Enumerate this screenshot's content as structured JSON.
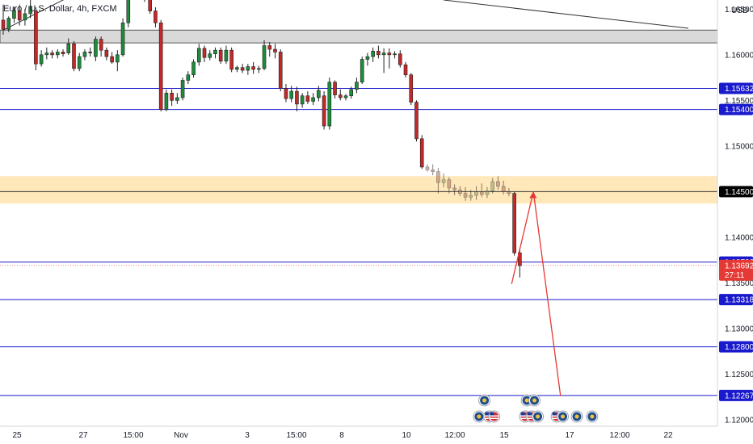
{
  "header": {
    "title": "Euro / U.S. Dollar, 4h, FXCM"
  },
  "colors": {
    "up": "#1e8c3c",
    "down": "#c62828",
    "level": "#1a1acd",
    "zone": "#ffcc66",
    "grey_zone": "#cfcfcf",
    "current": "#e53935",
    "trendline": "#333333",
    "arrow": "#e53935"
  },
  "chart_data": {
    "type": "candlestick",
    "title": "Euro / U.S. Dollar, 4h, FXCM",
    "currency": "USD",
    "ylim": [
      1.1193,
      1.166
    ],
    "y_ticks": [
      "1.16500",
      "1.16000",
      "1.15500",
      "1.15000",
      "1.14500",
      "1.14000",
      "1.13500",
      "1.13000",
      "1.12500",
      "1.12000"
    ],
    "x_ticks": [
      "25",
      "27",
      "15:00",
      "Nov",
      "3",
      "15:00",
      "8",
      "10",
      "12:00",
      "15",
      "17",
      "12:00",
      "22"
    ],
    "price_tags": [
      {
        "label": "1.15632",
        "value": 1.15632,
        "kind": "level"
      },
      {
        "label": "1.15400",
        "value": 1.154,
        "kind": "level"
      },
      {
        "label": "1.14500",
        "value": 1.145,
        "kind": "zone"
      },
      {
        "label": "1.13729",
        "value": 1.13729,
        "kind": "level"
      },
      {
        "label": "1.13692",
        "value": 1.13692,
        "kind": "current",
        "countdown": "27:11"
      },
      {
        "label": "1.13318",
        "value": 1.13318,
        "kind": "level"
      },
      {
        "label": "1.12800",
        "value": 1.128,
        "kind": "level"
      },
      {
        "label": "1.12267",
        "value": 1.12267,
        "kind": "level"
      }
    ],
    "horizontal_levels": [
      1.15632,
      1.154,
      1.13729,
      1.13318,
      1.128,
      1.12267
    ],
    "zones": [
      {
        "low": 1.1613,
        "high": 1.1627,
        "color": "grey"
      },
      {
        "low": 1.1437,
        "high": 1.1467,
        "color": "orange",
        "mid": 1.145
      }
    ],
    "trendlines": [
      {
        "from": [
          0,
          1.1627
        ],
        "to": [
          16,
          1.1675
        ]
      },
      {
        "from": [
          81,
          1.166
        ],
        "to": [
          126,
          1.1629
        ]
      }
    ],
    "projection": [
      [
        93.5,
        1.1349
      ],
      [
        97.5,
        1.145
      ],
      [
        102.5,
        1.1226
      ]
    ],
    "candles": [
      [
        1.1638,
        1.1655,
        1.1622,
        1.1628
      ],
      [
        1.1628,
        1.1642,
        1.1625,
        1.164
      ],
      [
        1.164,
        1.1652,
        1.1635,
        1.1648
      ],
      [
        1.1648,
        1.1655,
        1.1632,
        1.1638
      ],
      [
        1.1638,
        1.165,
        1.1632,
        1.1645
      ],
      [
        1.1645,
        1.166,
        1.164,
        1.1653
      ],
      [
        1.1648,
        1.1652,
        1.1583,
        1.159
      ],
      [
        1.159,
        1.1605,
        1.1587,
        1.16
      ],
      [
        1.16,
        1.1608,
        1.1595,
        1.1602
      ],
      [
        1.1602,
        1.1605,
        1.1596,
        1.16
      ],
      [
        1.16,
        1.1606,
        1.1596,
        1.1603
      ],
      [
        1.1603,
        1.1606,
        1.1598,
        1.1601
      ],
      [
        1.1602,
        1.1618,
        1.16,
        1.1612
      ],
      [
        1.1612,
        1.1615,
        1.1582,
        1.1585
      ],
      [
        1.1585,
        1.1602,
        1.1582,
        1.1598
      ],
      [
        1.1598,
        1.1606,
        1.1594,
        1.1603
      ],
      [
        1.1603,
        1.1608,
        1.1598,
        1.1602
      ],
      [
        1.1598,
        1.162,
        1.1593,
        1.1617
      ],
      [
        1.1617,
        1.162,
        1.1598,
        1.1605
      ],
      [
        1.1605,
        1.1608,
        1.1594,
        1.1598
      ],
      [
        1.1598,
        1.1603,
        1.159,
        1.1592
      ],
      [
        1.1592,
        1.1605,
        1.1582,
        1.16
      ],
      [
        1.16,
        1.164,
        1.1598,
        1.1635
      ],
      [
        1.1635,
        1.1672,
        1.163,
        1.1668
      ],
      [
        1.1668,
        1.1676,
        1.1662,
        1.167
      ],
      [
        1.167,
        1.1675,
        1.1665,
        1.1672
      ],
      [
        1.1672,
        1.1675,
        1.1658,
        1.1662
      ],
      [
        1.1662,
        1.1668,
        1.1645,
        1.1648
      ],
      [
        1.1648,
        1.1652,
        1.163,
        1.1635
      ],
      [
        1.1635,
        1.1638,
        1.1538,
        1.154
      ],
      [
        1.154,
        1.1562,
        1.1538,
        1.1558
      ],
      [
        1.1558,
        1.1562,
        1.1544,
        1.155
      ],
      [
        1.155,
        1.1558,
        1.1546,
        1.1553
      ],
      [
        1.1553,
        1.1575,
        1.155,
        1.1572
      ],
      [
        1.1572,
        1.1582,
        1.1568,
        1.1578
      ],
      [
        1.1578,
        1.1595,
        1.1575,
        1.1592
      ],
      [
        1.1592,
        1.1612,
        1.1588,
        1.1607
      ],
      [
        1.1607,
        1.161,
        1.1592,
        1.1597
      ],
      [
        1.1597,
        1.1605,
        1.1594,
        1.1601
      ],
      [
        1.1601,
        1.1608,
        1.1596,
        1.1605
      ],
      [
        1.1605,
        1.1608,
        1.159,
        1.1593
      ],
      [
        1.1593,
        1.161,
        1.159,
        1.1605
      ],
      [
        1.1605,
        1.1608,
        1.1581,
        1.1584
      ],
      [
        1.1584,
        1.1588,
        1.1581,
        1.1586
      ],
      [
        1.1586,
        1.159,
        1.158,
        1.1583
      ],
      [
        1.1583,
        1.159,
        1.1578,
        1.1587
      ],
      [
        1.1587,
        1.1592,
        1.1579,
        1.1584
      ],
      [
        1.1584,
        1.1588,
        1.158,
        1.1585
      ],
      [
        1.1585,
        1.1616,
        1.1583,
        1.161
      ],
      [
        1.161,
        1.1614,
        1.1598,
        1.1606
      ],
      [
        1.1606,
        1.1612,
        1.1596,
        1.1603
      ],
      [
        1.1603,
        1.1606,
        1.156,
        1.1563
      ],
      [
        1.1563,
        1.1568,
        1.1548,
        1.1552
      ],
      [
        1.1552,
        1.1566,
        1.1548,
        1.156
      ],
      [
        1.156,
        1.1565,
        1.1538,
        1.1546
      ],
      [
        1.1546,
        1.1558,
        1.1542,
        1.1555
      ],
      [
        1.1555,
        1.156,
        1.1546,
        1.1549
      ],
      [
        1.1549,
        1.1558,
        1.1545,
        1.1553
      ],
      [
        1.1553,
        1.1566,
        1.1549,
        1.1561
      ],
      [
        1.1555,
        1.156,
        1.1518,
        1.1522
      ],
      [
        1.1522,
        1.1575,
        1.1518,
        1.157
      ],
      [
        1.157,
        1.1572,
        1.1552,
        1.1556
      ],
      [
        1.1556,
        1.1562,
        1.155,
        1.1553
      ],
      [
        1.1553,
        1.1557,
        1.155,
        1.1555
      ],
      [
        1.1555,
        1.1565,
        1.1552,
        1.1562
      ],
      [
        1.1562,
        1.1575,
        1.1558,
        1.157
      ],
      [
        1.157,
        1.1598,
        1.1568,
        1.1595
      ],
      [
        1.1595,
        1.1602,
        1.1588,
        1.1598
      ],
      [
        1.1598,
        1.1608,
        1.1592,
        1.1604
      ],
      [
        1.1604,
        1.161,
        1.1596,
        1.16
      ],
      [
        1.16,
        1.1607,
        1.158,
        1.1602
      ],
      [
        1.1602,
        1.1607,
        1.1585,
        1.16
      ],
      [
        1.16,
        1.1604,
        1.1596,
        1.1601
      ],
      [
        1.1601,
        1.1605,
        1.1586,
        1.1589
      ],
      [
        1.1589,
        1.1592,
        1.1575,
        1.1578
      ],
      [
        1.1578,
        1.158,
        1.1545,
        1.1548
      ],
      [
        1.1548,
        1.155,
        1.1505,
        1.1508
      ],
      [
        1.1508,
        1.1512,
        1.1475,
        1.1477
      ],
      [
        1.1477,
        1.148,
        1.1472,
        1.1474
      ],
      [
        1.1474,
        1.148,
        1.1468,
        1.1472
      ],
      [
        1.1472,
        1.1476,
        1.1448,
        1.146
      ],
      [
        1.146,
        1.147,
        1.1455,
        1.1463
      ],
      [
        1.1463,
        1.1466,
        1.1448,
        1.1454
      ],
      [
        1.1454,
        1.1458,
        1.1446,
        1.1452
      ],
      [
        1.1452,
        1.1456,
        1.1445,
        1.1448
      ],
      [
        1.1448,
        1.1455,
        1.144,
        1.1444
      ],
      [
        1.1444,
        1.1452,
        1.144,
        1.1446
      ],
      [
        1.1446,
        1.1456,
        1.1441,
        1.145
      ],
      [
        1.145,
        1.1459,
        1.1444,
        1.1447
      ],
      [
        1.1447,
        1.1455,
        1.1443,
        1.1451
      ],
      [
        1.1451,
        1.1465,
        1.1448,
        1.1461
      ],
      [
        1.1461,
        1.1467,
        1.1452,
        1.1456
      ],
      [
        1.1456,
        1.1462,
        1.1447,
        1.145
      ],
      [
        1.145,
        1.1454,
        1.1445,
        1.1448
      ],
      [
        1.1448,
        1.145,
        1.138,
        1.1383
      ],
      [
        1.1383,
        1.1388,
        1.1356,
        1.1369
      ]
    ],
    "events": [
      {
        "slot": 88.5,
        "row": "top",
        "kind": "globe"
      },
      {
        "slot": 96.3,
        "row": "top",
        "kind": "globe"
      },
      {
        "slot": 97.7,
        "row": "top",
        "kind": "globe"
      },
      {
        "slot": 87.5,
        "row": "bottom",
        "kind": "globe"
      },
      {
        "slot": 89.4,
        "row": "bottom",
        "kind": "flag"
      },
      {
        "slot": 90.3,
        "row": "bottom",
        "kind": "flag"
      },
      {
        "slot": 96.0,
        "row": "bottom",
        "kind": "flag"
      },
      {
        "slot": 97.2,
        "row": "bottom",
        "kind": "flag"
      },
      {
        "slot": 98.3,
        "row": "bottom",
        "kind": "globe"
      },
      {
        "slot": 101.8,
        "row": "bottom",
        "kind": "flag"
      },
      {
        "slot": 102.9,
        "row": "bottom",
        "kind": "globe"
      },
      {
        "slot": 105.5,
        "row": "bottom",
        "kind": "globe"
      },
      {
        "slot": 108.3,
        "row": "bottom",
        "kind": "globe"
      }
    ]
  }
}
